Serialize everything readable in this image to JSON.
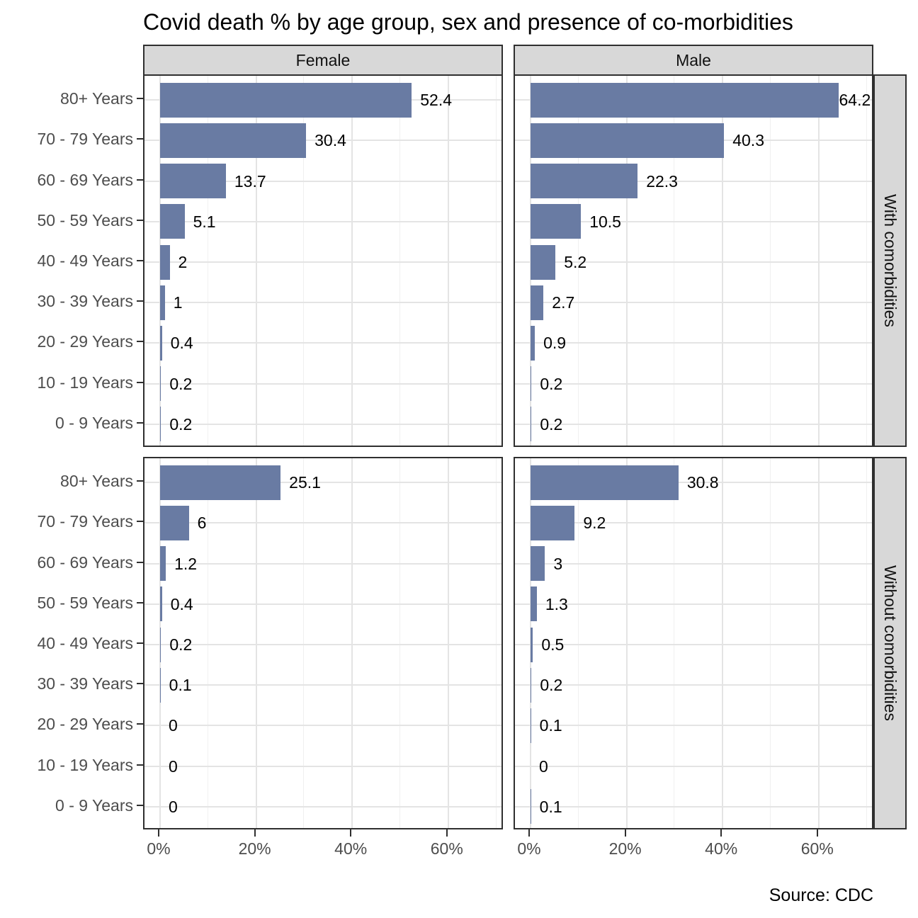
{
  "title": "Covid death % by age group, sex and presence of co-morbidities",
  "source": "Source: CDC",
  "chart_data": {
    "type": "bar",
    "orientation": "horizontal",
    "title": "Covid death % by age group, sex and presence of co-morbidities",
    "categories": [
      "80+ Years",
      "70 - 79 Years",
      "60 - 69 Years",
      "50 - 59 Years",
      "40 - 49 Years",
      "30 - 39 Years",
      "20 - 29 Years",
      "10 - 19 Years",
      "0 - 9 Years"
    ],
    "col_facets": [
      "Female",
      "Male"
    ],
    "row_facets": [
      "With comorbidities",
      "Without comorbidities"
    ],
    "panels": [
      {
        "col": "Female",
        "row": "With comorbidities",
        "values": [
          52.4,
          30.4,
          13.7,
          5.1,
          2,
          1,
          0.4,
          0.2,
          0.2
        ]
      },
      {
        "col": "Male",
        "row": "With comorbidities",
        "values": [
          64.2,
          40.3,
          22.3,
          10.5,
          5.2,
          2.7,
          0.9,
          0.2,
          0.2
        ]
      },
      {
        "col": "Female",
        "row": "Without comorbidities",
        "values": [
          25.1,
          6,
          1.2,
          0.4,
          0.2,
          0.1,
          0,
          0,
          0
        ]
      },
      {
        "col": "Male",
        "row": "Without comorbidities",
        "values": [
          30.8,
          9.2,
          3,
          1.3,
          0.5,
          0.2,
          0.1,
          0,
          0.1
        ]
      }
    ],
    "x_ticks": [
      "0%",
      "20%",
      "40%",
      "60%"
    ],
    "x_tick_values": [
      0,
      20,
      40,
      60
    ],
    "xlim": [
      0,
      72
    ],
    "value_unit": "%",
    "grid": true,
    "legend": "none",
    "bar_color": "#697ba3",
    "caption": "Source: CDC"
  },
  "colors": {
    "bar": "#697ba3",
    "strip_background": "#d8d8d8",
    "panel_border": "#2f2f2f",
    "grid_major": "#e4e4e4",
    "grid_minor": "#f0f0f0",
    "axis_text": "#4d4d4d",
    "label_text": "#000000"
  }
}
